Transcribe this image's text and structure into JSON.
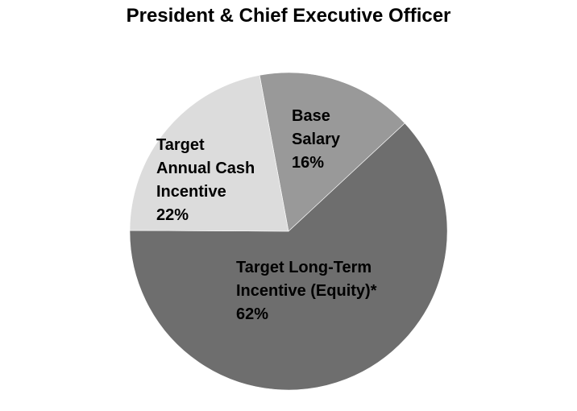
{
  "chart_data": {
    "type": "pie",
    "title": "President & Chief Executive Officer",
    "categories": [
      "Base\nSalary",
      "Target Long-Term\nIncentive (Equity)*",
      "Target\nAnnual Cash\nIncentive"
    ],
    "values": [
      16,
      62,
      22
    ],
    "value_labels": [
      "16%",
      "62%",
      "22%"
    ],
    "colors": [
      "#999999",
      "#6e6e6e",
      "#dcdcdc"
    ]
  }
}
